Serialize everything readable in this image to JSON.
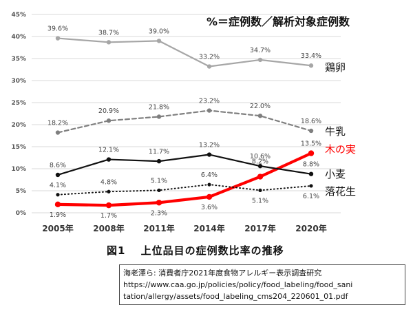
{
  "chart_data": {
    "type": "line",
    "title": "",
    "annotation": "%＝症例数／解析対象症例数",
    "x": [
      "2005年",
      "2008年",
      "2011年",
      "2014年",
      "2017年",
      "2020年"
    ],
    "y_ticks": [
      "0%",
      "5%",
      "10%",
      "15%",
      "20%",
      "25%",
      "30%",
      "35%",
      "40%",
      "45%"
    ],
    "ylim": [
      0,
      45
    ],
    "grid": true,
    "series": [
      {
        "name": "鶏卵",
        "values": [
          39.6,
          38.7,
          39.0,
          33.2,
          34.7,
          33.4
        ],
        "labels": [
          "39.6%",
          "38.7%",
          "39.0%",
          "33.2%",
          "34.7%",
          "33.4%"
        ],
        "color": "#a6a6a6",
        "style": "solid"
      },
      {
        "name": "牛乳",
        "values": [
          18.2,
          20.9,
          21.8,
          23.2,
          22.0,
          18.6
        ],
        "labels": [
          "18.2%",
          "20.9%",
          "21.8%",
          "23.2%",
          "22.0%",
          "18.6%"
        ],
        "color": "#7f7f7f",
        "style": "dashed"
      },
      {
        "name": "木の実",
        "values": [
          1.9,
          1.7,
          2.3,
          3.6,
          8.2,
          13.5
        ],
        "labels": [
          "1.9%",
          "1.7%",
          "2.3%",
          "3.6%",
          "8.2%",
          "13.5%"
        ],
        "color": "#ff0000",
        "style": "solid-thick"
      },
      {
        "name": "小麦",
        "values": [
          8.6,
          12.1,
          11.7,
          13.2,
          10.6,
          8.8
        ],
        "labels": [
          "8.6%",
          "12.1%",
          "11.7%",
          "13.2%",
          "10.6%",
          "8.8%"
        ],
        "color": "#111111",
        "style": "solid"
      },
      {
        "name": "落花生",
        "values": [
          4.1,
          4.8,
          5.1,
          6.4,
          5.1,
          6.1
        ],
        "labels": [
          "4.1%",
          "4.8%",
          "5.1%",
          "6.4%",
          "5.1%",
          "6.1%"
        ],
        "color": "#111111",
        "style": "dotted"
      }
    ]
  },
  "caption": "図1　 上位品目の症例数比率の推移",
  "source": {
    "line1": "海老澤ら: 消費者庁2021年度食物アレルギー表示調査研究",
    "line2": "https://www.caa.go.jp/policies/policy/food_labeling/food_sani",
    "line3": "tation/allergy/assets/food_labeling_cms204_220601_01.pdf"
  }
}
